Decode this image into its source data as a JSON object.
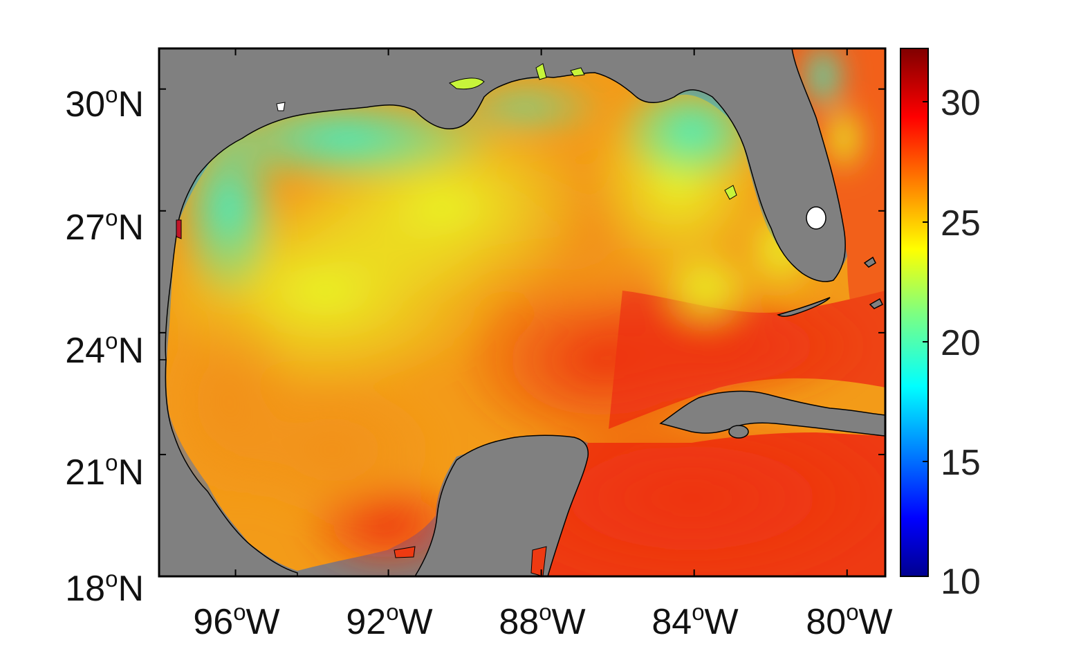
{
  "map": {
    "lat_ticks": [
      {
        "deg": "30",
        "sup": "o",
        "hemi": "N"
      },
      {
        "deg": "27",
        "sup": "o",
        "hemi": "N"
      },
      {
        "deg": "24",
        "sup": "o",
        "hemi": "N"
      },
      {
        "deg": "21",
        "sup": "o",
        "hemi": "N"
      },
      {
        "deg": "18",
        "sup": "o",
        "hemi": "N"
      }
    ],
    "lon_ticks": [
      {
        "deg": "96",
        "sup": "o",
        "hemi": "W"
      },
      {
        "deg": "92",
        "sup": "o",
        "hemi": "W"
      },
      {
        "deg": "88",
        "sup": "o",
        "hemi": "W"
      },
      {
        "deg": "84",
        "sup": "o",
        "hemi": "W"
      },
      {
        "deg": "80",
        "sup": "o",
        "hemi": "W"
      }
    ],
    "extent": {
      "lon_min": -98.0,
      "lon_max": -79.0,
      "lat_min": 18.0,
      "lat_max": 31.0
    },
    "colors": {
      "land": "#808080",
      "frame": "#000000",
      "cool_shelf": "#2ef0c4",
      "mid": "#e8f52a",
      "warm": "#f59a12",
      "hot": "#ee3a12"
    }
  },
  "colorbar": {
    "min": 10,
    "max": 32,
    "ticks": [
      "30",
      "25",
      "20",
      "15",
      "10"
    ],
    "colormap": "jet"
  }
}
